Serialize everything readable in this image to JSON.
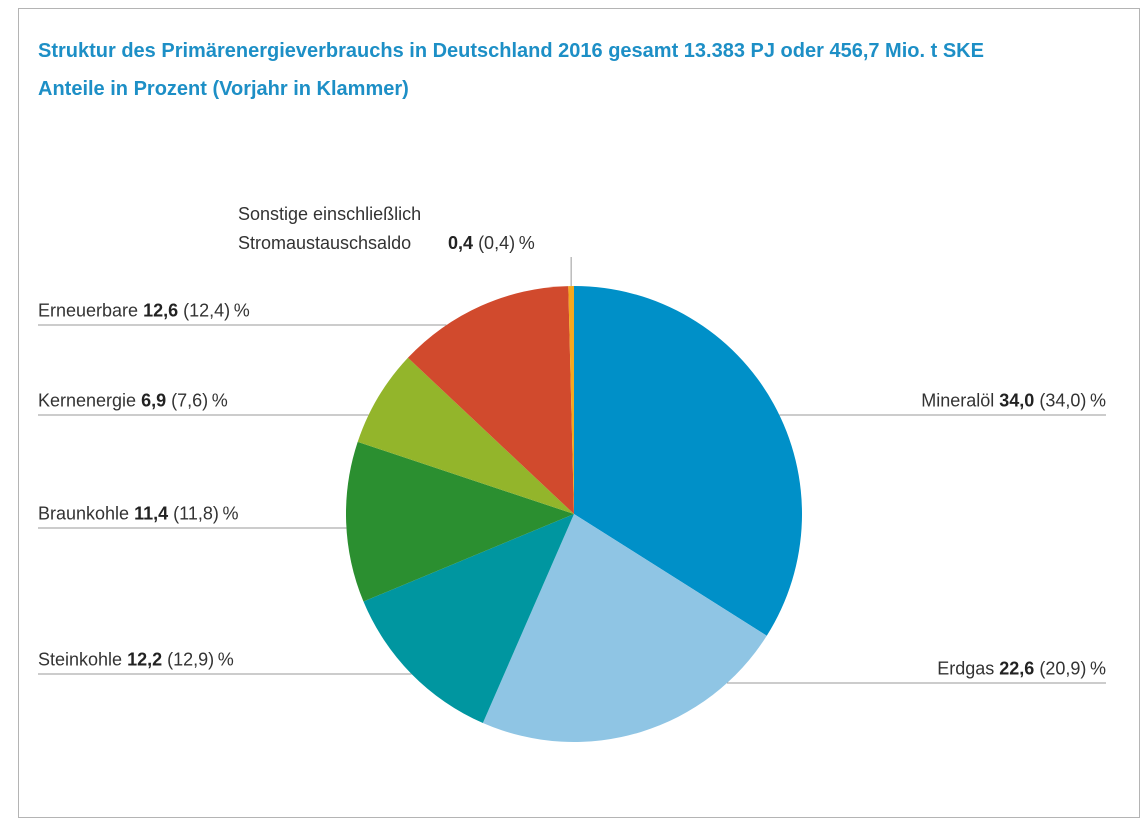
{
  "chart_data": {
    "type": "pie",
    "title": "Struktur des Primärenergieverbrauchs in Deutschland 2016 gesamt 13.383 PJ oder 456,7 Mio. t SKE",
    "subtitle": "Anteile in Prozent (Vorjahr in Klammer)",
    "categories": [
      "Mineralöl",
      "Erdgas",
      "Steinkohle",
      "Braunkohle",
      "Kernenergie",
      "Erneuerbare",
      "Sonstige einschließlich Stromaustauschsaldo"
    ],
    "values": [
      34.0,
      22.6,
      12.2,
      11.4,
      6.9,
      12.6,
      0.4
    ],
    "value_labels": [
      "34,0",
      "22,6",
      "12,2",
      "11,4",
      "6,9",
      "12,6",
      "0,4"
    ],
    "prev_values": [
      34.0,
      20.9,
      12.9,
      11.8,
      7.6,
      12.4,
      0.4
    ],
    "prev_value_labels": [
      "(34,0)",
      "(20,9)",
      "(12,9)",
      "(11,8)",
      "(7,6)",
      "(12,4)",
      "(0,4)"
    ],
    "unit": "%",
    "colors": [
      "#0090c8",
      "#8fc5e4",
      "#0096a0",
      "#2b8f30",
      "#93b52b",
      "#d14a2d",
      "#f4a81f"
    ]
  }
}
